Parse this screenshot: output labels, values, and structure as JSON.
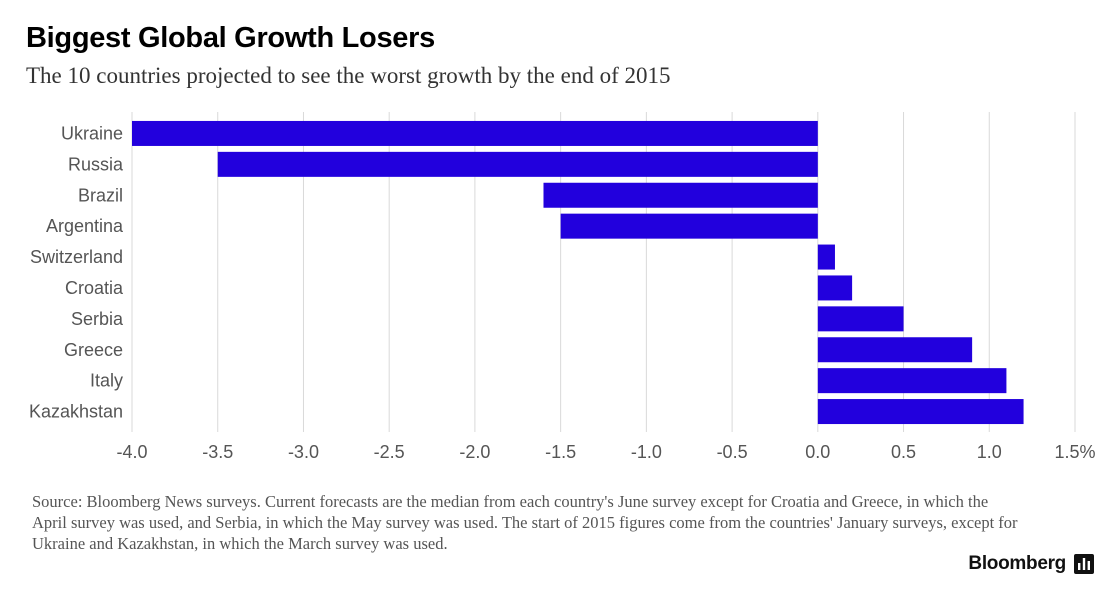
{
  "header": {
    "title": "Biggest Global Growth Losers",
    "subtitle": "The 10 countries projected to see the worst growth by the end of 2015"
  },
  "chart_data": {
    "type": "bar",
    "orientation": "horizontal",
    "categories": [
      "Ukraine",
      "Russia",
      "Brazil",
      "Argentina",
      "Switzerland",
      "Croatia",
      "Serbia",
      "Greece",
      "Italy",
      "Kazakhstan"
    ],
    "values": [
      -4.0,
      -3.5,
      -1.6,
      -1.5,
      0.1,
      0.2,
      0.5,
      0.9,
      1.1,
      1.2
    ],
    "xlim": [
      -4.0,
      1.5
    ],
    "xticks": [
      "-4.0",
      "-3.5",
      "-3.0",
      "-2.5",
      "-2.0",
      "-1.5",
      "-1.0",
      "-0.5",
      "0.0",
      "0.5",
      "1.0",
      "1.5%"
    ],
    "xtick_values": [
      -4.0,
      -3.5,
      -3.0,
      -2.5,
      -2.0,
      -1.5,
      -1.0,
      -0.5,
      0.0,
      0.5,
      1.0,
      1.5
    ],
    "grid": "vertical",
    "legend": "none",
    "bar_color": "#2200dd"
  },
  "footer": {
    "source": "Source: Bloomberg News surveys. Current forecasts are the median from each country's June survey except for Croatia and Greece, in which the April survey was used, and Serbia, in which the May survey was used. The start of 2015 figures come from the countries' January surveys, except for Ukraine and Kazakhstan, in which the March survey was used.",
    "brand": "Bloomberg",
    "brand_icon": "bar-chart-icon"
  }
}
